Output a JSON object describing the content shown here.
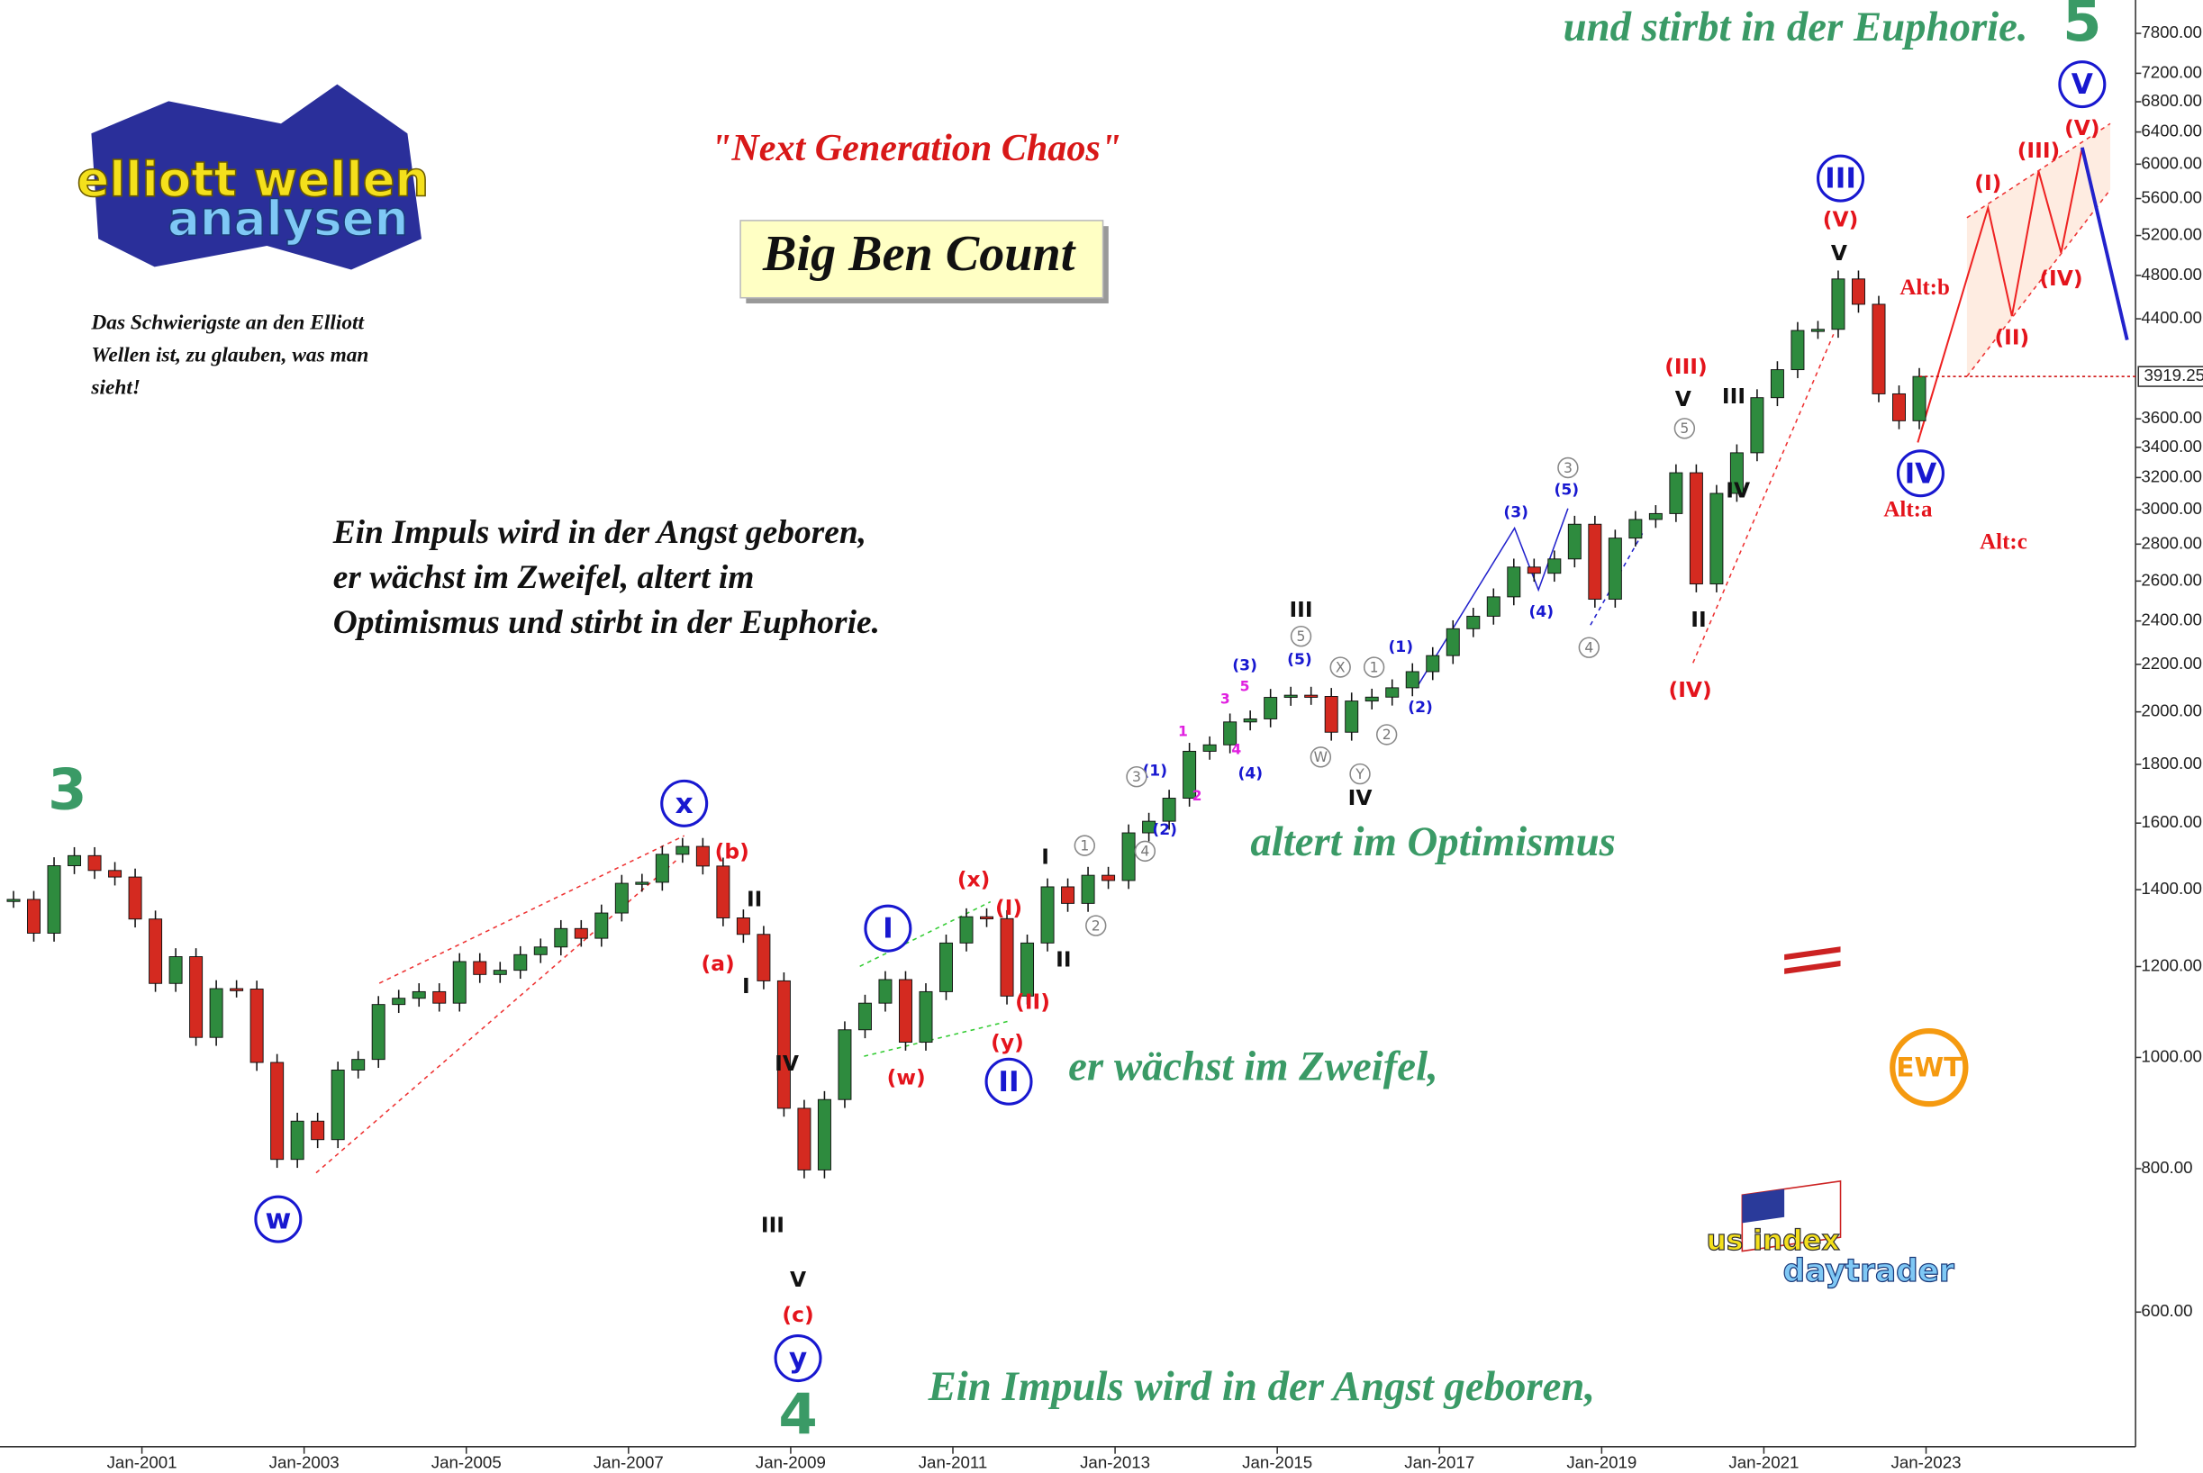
{
  "chart_data": {
    "type": "candlestick",
    "title": "\"Next Generation Chaos\"",
    "subtitle": "Big Ben Count",
    "quote": [
      "Das Schwierigste an den Elliott",
      "Wellen ist, zu glauben, was man",
      "sieht!"
    ],
    "motto": [
      "Ein Impuls wird in der Angst geboren,",
      "er wächst im Zweifel, altert im",
      "Optimismus und stirbt in der Euphorie."
    ],
    "logos": [
      "elliott wellen",
      "analysen",
      "EWT",
      "us index",
      "daytrader"
    ],
    "log_scale": true,
    "up_color": "#2e8b3e",
    "down_color": "#d42a20",
    "xlim": [
      "Apr-1999",
      "Aug-2025"
    ],
    "xticks": [
      "Jan-2001",
      "Jan-2003",
      "Jan-2005",
      "Jan-2007",
      "Jan-2009",
      "Jan-2011",
      "Jan-2013",
      "Jan-2015",
      "Jan-2017",
      "Jan-2019",
      "Jan-2021",
      "Jan-2023"
    ],
    "ylim": [
      458,
      8340
    ],
    "yticks": [
      {
        "value": 600,
        "label": "600.00"
      },
      {
        "value": 800,
        "label": "800.00"
      },
      {
        "value": 1000,
        "label": "1000.00"
      },
      {
        "value": 1200,
        "label": "1200.00"
      },
      {
        "value": 1400,
        "label": "1400.00"
      },
      {
        "value": 1600,
        "label": "1600.00"
      },
      {
        "value": 1800,
        "label": "1800.00"
      },
      {
        "value": 2000,
        "label": "2000.00"
      },
      {
        "value": 2200,
        "label": "2200.00"
      },
      {
        "value": 2400,
        "label": "2400.00"
      },
      {
        "value": 2600,
        "label": "2600.00"
      },
      {
        "value": 2800,
        "label": "2800.00"
      },
      {
        "value": 3000,
        "label": "3000.00"
      },
      {
        "value": 3200,
        "label": "3200.00"
      },
      {
        "value": 3400,
        "label": "3400.00"
      },
      {
        "value": 3600,
        "label": "3600.00"
      },
      {
        "value": 4400,
        "label": "4400.00"
      },
      {
        "value": 4800,
        "label": "4800.00"
      },
      {
        "value": 5200,
        "label": "5200.00"
      },
      {
        "value": 5600,
        "label": "5600.00"
      },
      {
        "value": 6000,
        "label": "6000.00"
      },
      {
        "value": 6400,
        "label": "6400.00"
      },
      {
        "value": 6800,
        "label": "6800.00"
      },
      {
        "value": 7200,
        "label": "7200.00"
      },
      {
        "value": 7800,
        "label": "7800.00"
      }
    ],
    "x": [
      "Jun-1999",
      "Sep-1999",
      "Dec-1999",
      "Mar-2000",
      "Jun-2000",
      "Sep-2000",
      "Dec-2000",
      "Mar-2001",
      "Jun-2001",
      "Sep-2001",
      "Dec-2001",
      "Mar-2002",
      "Jun-2002",
      "Sep-2002",
      "Dec-2002",
      "Mar-2003",
      "Jun-2003",
      "Sep-2003",
      "Dec-2003",
      "Mar-2004",
      "Jun-2004",
      "Sep-2004",
      "Dec-2004",
      "Mar-2005",
      "Jun-2005",
      "Sep-2005",
      "Dec-2005",
      "Mar-2006",
      "Jun-2006",
      "Sep-2006",
      "Dec-2006",
      "Mar-2007",
      "Jun-2007",
      "Sep-2007",
      "Dec-2007",
      "Mar-2008",
      "Jun-2008",
      "Sep-2008",
      "Dec-2008",
      "Mar-2009",
      "Jun-2009",
      "Sep-2009",
      "Dec-2009",
      "Mar-2010",
      "Jun-2010",
      "Sep-2010",
      "Dec-2010",
      "Mar-2011",
      "Jun-2011",
      "Sep-2011",
      "Dec-2011",
      "Mar-2012",
      "Jun-2012",
      "Sep-2012",
      "Dec-2012",
      "Mar-2013",
      "Jun-2013",
      "Sep-2013",
      "Dec-2013",
      "Mar-2014",
      "Jun-2014",
      "Sep-2014",
      "Dec-2014",
      "Mar-2015",
      "Jun-2015",
      "Sep-2015",
      "Dec-2015",
      "Mar-2016",
      "Jun-2016",
      "Sep-2016",
      "Dec-2016",
      "Mar-2017",
      "Jun-2017",
      "Sep-2017",
      "Dec-2017",
      "Mar-2018",
      "Jun-2018",
      "Sep-2018",
      "Dec-2018",
      "Mar-2019",
      "Jun-2019",
      "Sep-2019",
      "Dec-2019",
      "Mar-2020",
      "Jun-2020",
      "Sep-2020",
      "Dec-2020",
      "Mar-2021",
      "Jun-2021",
      "Sep-2021",
      "Dec-2021",
      "Mar-2022",
      "Jun-2022",
      "Sep-2022",
      "Dec-2022"
    ],
    "values": [
      1373,
      1283,
      1469,
      1499,
      1455,
      1436,
      1320,
      1160,
      1224,
      1041,
      1148,
      1147,
      990,
      815,
      880,
      848,
      975,
      996,
      1112,
      1126,
      1141,
      1115,
      1212,
      1181,
      1191,
      1229,
      1248,
      1295,
      1270,
      1336,
      1418,
      1421,
      1503,
      1527,
      1468,
      1323,
      1280,
      1166,
      903,
      798,
      919,
      1057,
      1115,
      1169,
      1031,
      1141,
      1258,
      1326,
      1321,
      1131,
      1258,
      1408,
      1362,
      1441,
      1426,
      1569,
      1606,
      1682,
      1848,
      1872,
      1960,
      1972,
      2059,
      2068,
      2063,
      1920,
      2044,
      2060,
      2099,
      2168,
      2239,
      2363,
      2423,
      2519,
      2674,
      2641,
      2718,
      2914,
      2507,
      2834,
      2942,
      2977,
      3231,
      2585,
      3100,
      3363,
      3756,
      3973,
      4298,
      4308,
      4766,
      4530,
      3785,
      3586,
      3919.25
    ],
    "last_label": "3919.25",
    "labels": [
      "3",
      "4",
      "5",
      "und stirbt in der Euphorie.",
      "altert im Optimismus",
      "er wächst im Zweifel,",
      "Ein Impuls wird in der Angst geboren,",
      "w",
      "x",
      "y",
      "I",
      "II",
      "III",
      "IV",
      "V",
      "(b)",
      "(a)",
      "(c)",
      "(x)",
      "(w)",
      "(y)",
      "(I)",
      "(II)",
      "(III)",
      "(IV)",
      "(V)",
      "(I)",
      "(II)",
      "(III)",
      "(IV)",
      "(V)",
      "Alt:b",
      "Alt:a",
      "Alt:c",
      "II",
      "I",
      "IV",
      "III",
      "V",
      "I",
      "II",
      "III",
      "IV",
      "V",
      "III",
      "IV",
      "II",
      "V",
      "(3)",
      "(5)",
      "(4)",
      "(1)",
      "(2)",
      "(3)",
      "(5)",
      "(4)",
      "(1)",
      "(2)",
      "5",
      "3",
      "4",
      "1",
      "2",
      "5",
      "X",
      "W",
      "Y",
      "3",
      "4",
      "1",
      "2",
      "1",
      "2",
      "3",
      "4",
      "5"
    ]
  }
}
